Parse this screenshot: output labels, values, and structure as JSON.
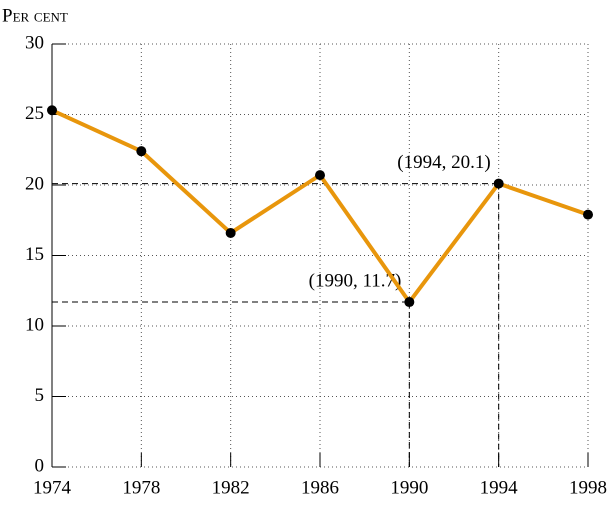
{
  "chart_data": {
    "type": "line",
    "y_label": "Per cent",
    "x": [
      1974,
      1978,
      1982,
      1986,
      1990,
      1994,
      1998
    ],
    "series": [
      {
        "color": "#e8960c",
        "values": [
          25.3,
          22.4,
          16.6,
          20.7,
          11.7,
          20.1,
          17.9
        ]
      }
    ],
    "xlim": [
      1974,
      1998
    ],
    "xticks": [
      1974,
      1978,
      1982,
      1986,
      1990,
      1994,
      1998
    ],
    "ylim": [
      0,
      30
    ],
    "yticks": [
      0,
      5,
      10,
      15,
      20,
      25,
      30
    ],
    "grid": true,
    "annotations": [
      {
        "text": "(1994, 20.1)",
        "x": 1994,
        "y": 20.1
      },
      {
        "text": "(1990, 11.7)",
        "x": 1990,
        "y": 11.7
      }
    ]
  }
}
